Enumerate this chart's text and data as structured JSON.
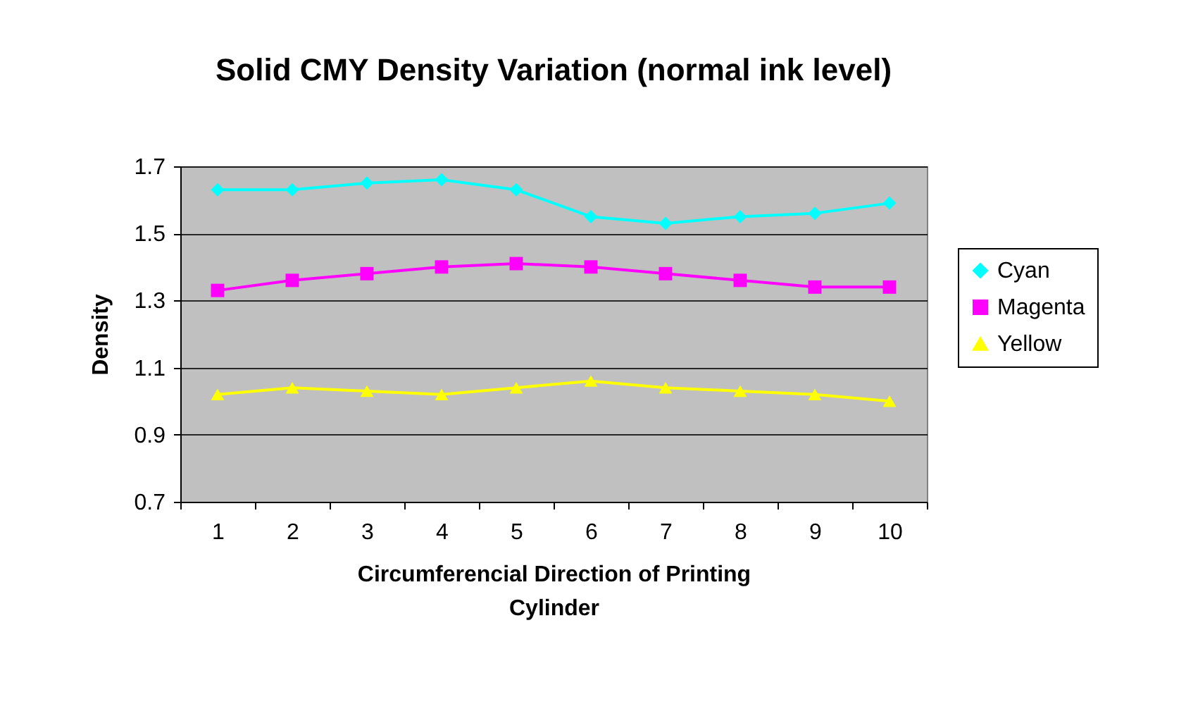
{
  "chart_data": {
    "type": "line",
    "title": "Solid CMY Density Variation (normal ink level)",
    "xlabel": "Circumferencial Direction of Printing Cylinder",
    "ylabel": "Density",
    "categories": [
      "1",
      "2",
      "3",
      "4",
      "5",
      "6",
      "7",
      "8",
      "9",
      "10"
    ],
    "series": [
      {
        "name": "Cyan",
        "color": "#00ffff",
        "marker": "diamond",
        "values": [
          1.63,
          1.63,
          1.65,
          1.66,
          1.63,
          1.55,
          1.53,
          1.55,
          1.56,
          1.59
        ]
      },
      {
        "name": "Magenta",
        "color": "#ff00ff",
        "marker": "square",
        "values": [
          1.33,
          1.36,
          1.38,
          1.4,
          1.41,
          1.4,
          1.38,
          1.36,
          1.34,
          1.34
        ]
      },
      {
        "name": "Yellow",
        "color": "#ffff00",
        "marker": "triangle",
        "values": [
          1.02,
          1.04,
          1.03,
          1.02,
          1.04,
          1.06,
          1.04,
          1.03,
          1.02,
          1.0
        ]
      }
    ],
    "ylim": [
      0.7,
      1.7
    ],
    "yticks": [
      0.7,
      0.9,
      1.1,
      1.3,
      1.5,
      1.7
    ],
    "grid": "y",
    "legend": "right"
  }
}
